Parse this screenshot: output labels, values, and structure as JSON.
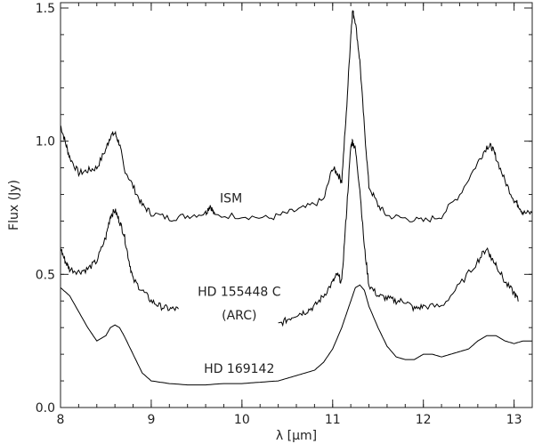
{
  "chart_data": {
    "type": "line",
    "title": "",
    "xlabel": "λ [μm]",
    "ylabel": "Flux (Jy)",
    "xlim": [
      8,
      13.2
    ],
    "ylim": [
      0,
      1.52
    ],
    "xticks": [
      8,
      9,
      10,
      11,
      12,
      13
    ],
    "yticks": [
      0.0,
      0.5,
      1.0,
      1.5
    ],
    "ytick_labels": [
      "0.0",
      "0.5",
      "1.0",
      "1.5"
    ],
    "grid": false,
    "legend": "none",
    "line_color": "#000000",
    "series": [
      {
        "name": "ISM",
        "x": [
          8.0,
          8.05,
          8.1,
          8.2,
          8.3,
          8.4,
          8.5,
          8.55,
          8.6,
          8.65,
          8.7,
          8.8,
          8.9,
          9.0,
          9.2,
          9.4,
          9.6,
          9.65,
          9.7,
          10.0,
          10.3,
          10.5,
          10.7,
          10.9,
          11.0,
          11.05,
          11.1,
          11.15,
          11.2,
          11.22,
          11.25,
          11.3,
          11.35,
          11.4,
          11.5,
          11.6,
          11.8,
          12.0,
          12.2,
          12.4,
          12.6,
          12.7,
          12.75,
          12.8,
          12.9,
          13.0,
          13.05,
          13.1,
          13.2
        ],
        "y": [
          1.06,
          1.0,
          0.94,
          0.88,
          0.89,
          0.9,
          0.97,
          1.02,
          1.03,
          0.99,
          0.9,
          0.83,
          0.76,
          0.73,
          0.71,
          0.72,
          0.73,
          0.76,
          0.72,
          0.72,
          0.71,
          0.73,
          0.75,
          0.78,
          0.9,
          0.88,
          0.85,
          1.1,
          1.4,
          1.49,
          1.45,
          1.3,
          1.05,
          0.83,
          0.76,
          0.72,
          0.71,
          0.7,
          0.72,
          0.8,
          0.92,
          0.98,
          0.98,
          0.94,
          0.85,
          0.78,
          0.76,
          0.73,
          0.73
        ]
      },
      {
        "name": "HD 155448 C",
        "x": [
          8.0,
          8.05,
          8.1,
          8.2,
          8.3,
          8.4,
          8.5,
          8.55,
          8.6,
          8.65,
          8.7,
          8.75,
          8.8,
          8.9,
          9.0,
          9.1,
          9.2,
          9.3
        ],
        "y": [
          0.6,
          0.55,
          0.52,
          0.51,
          0.52,
          0.55,
          0.64,
          0.72,
          0.74,
          0.7,
          0.65,
          0.56,
          0.48,
          0.44,
          0.4,
          0.38,
          0.37,
          0.37
        ]
      },
      {
        "name": "HD 155448 C",
        "x": [
          10.4,
          10.5,
          10.6,
          10.7,
          10.8,
          10.9,
          11.0,
          11.05,
          11.1,
          11.15,
          11.2,
          11.22,
          11.25,
          11.3,
          11.35,
          11.4,
          11.5,
          11.6,
          11.7,
          11.8,
          11.9,
          12.0,
          12.2,
          12.4,
          12.6,
          12.7,
          12.75,
          12.8,
          12.9,
          13.0,
          13.05
        ],
        "y": [
          0.31,
          0.33,
          0.35,
          0.36,
          0.38,
          0.42,
          0.47,
          0.5,
          0.47,
          0.72,
          0.98,
          1.0,
          0.97,
          0.82,
          0.6,
          0.46,
          0.42,
          0.41,
          0.4,
          0.4,
          0.37,
          0.38,
          0.38,
          0.46,
          0.55,
          0.6,
          0.56,
          0.54,
          0.47,
          0.43,
          0.4
        ]
      },
      {
        "name": "HD 169142",
        "x": [
          8.0,
          8.1,
          8.2,
          8.3,
          8.4,
          8.5,
          8.55,
          8.6,
          8.65,
          8.7,
          8.8,
          8.9,
          9.0,
          9.2,
          9.4,
          9.6,
          9.8,
          10.0,
          10.2,
          10.4,
          10.6,
          10.8,
          10.9,
          11.0,
          11.1,
          11.15,
          11.2,
          11.25,
          11.3,
          11.35,
          11.4,
          11.5,
          11.6,
          11.7,
          11.8,
          11.9,
          12.0,
          12.1,
          12.2,
          12.3,
          12.4,
          12.5,
          12.6,
          12.7,
          12.8,
          12.9,
          13.0,
          13.1,
          13.2
        ],
        "y": [
          0.45,
          0.42,
          0.36,
          0.3,
          0.25,
          0.27,
          0.3,
          0.31,
          0.3,
          0.27,
          0.2,
          0.13,
          0.1,
          0.09,
          0.085,
          0.085,
          0.09,
          0.09,
          0.095,
          0.1,
          0.12,
          0.14,
          0.17,
          0.22,
          0.3,
          0.35,
          0.4,
          0.45,
          0.46,
          0.44,
          0.38,
          0.3,
          0.23,
          0.19,
          0.18,
          0.18,
          0.2,
          0.2,
          0.19,
          0.2,
          0.21,
          0.22,
          0.25,
          0.27,
          0.27,
          0.25,
          0.24,
          0.25,
          0.25
        ]
      }
    ],
    "annotations": [
      {
        "text": "ISM",
        "x": 9.88,
        "y": 0.77
      },
      {
        "text": "HD 155448 C",
        "x": 9.97,
        "y": 0.42
      },
      {
        "text": "(ARC)",
        "x": 9.97,
        "y": 0.33
      },
      {
        "text": "HD 169142",
        "x": 9.97,
        "y": 0.13
      }
    ]
  }
}
